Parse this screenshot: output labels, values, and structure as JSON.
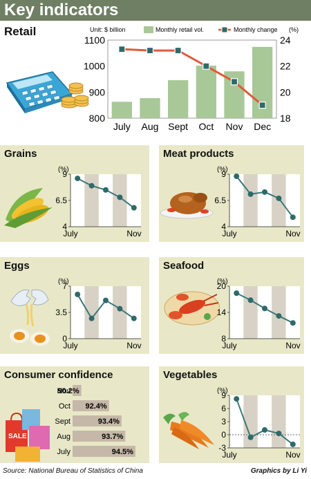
{
  "header": {
    "title": "Key indicators"
  },
  "retail": {
    "title": "Retail",
    "unit_label": "Unit: $ billion",
    "legend_bar": "Monthly retail vol.",
    "legend_line": "Monthly change",
    "right_unit": "(%)",
    "chart_data": {
      "type": "bar+line",
      "categories": [
        "July",
        "Aug",
        "Sept",
        "Oct",
        "Nov",
        "Dec"
      ],
      "series": [
        {
          "name": "Monthly retail vol.",
          "type": "bar",
          "axis": "left",
          "values": [
            863,
            877,
            946,
            1002,
            980,
            1074
          ]
        },
        {
          "name": "Monthly change",
          "type": "line",
          "axis": "right",
          "values": [
            23.3,
            23.2,
            23.2,
            22.0,
            20.8,
            19.0
          ]
        }
      ],
      "ylim_left": [
        800,
        1100
      ],
      "yticks_left": [
        "800",
        "900",
        "1000",
        "1100"
      ],
      "ylim_right": [
        18,
        24
      ],
      "yticks_right": [
        "18",
        "20",
        "22",
        "24"
      ],
      "colors": {
        "bar": "#a8c898",
        "line": "#e05a3a",
        "marker": "#2e6a6a"
      }
    }
  },
  "panels": [
    {
      "id": "grains",
      "title": "Grains",
      "unit": "(%)",
      "chart_data": {
        "type": "line",
        "x_first": "July",
        "x_last": "Nov",
        "values": [
          8.6,
          7.9,
          7.5,
          6.8,
          5.8
        ],
        "ylim": [
          4,
          9
        ],
        "yticks": [
          "4",
          "6.5",
          "9"
        ]
      }
    },
    {
      "id": "meat",
      "title": "Meat products",
      "unit": "(%)",
      "chart_data": {
        "type": "line",
        "x_first": "July",
        "x_last": "Nov",
        "values": [
          8.8,
          7.1,
          7.3,
          6.7,
          4.9
        ],
        "ylim": [
          4,
          9
        ],
        "yticks": [
          "4",
          "6.5",
          "9"
        ]
      }
    },
    {
      "id": "eggs",
      "title": "Eggs",
      "unit": "(%)",
      "chart_data": {
        "type": "line",
        "x_first": "July",
        "x_last": "Nov",
        "values": [
          5.9,
          2.7,
          5.1,
          4.0,
          2.7
        ],
        "ylim": [
          0,
          7
        ],
        "yticks": [
          "0",
          "3.5",
          "7"
        ]
      }
    },
    {
      "id": "seafood",
      "title": "Seafood",
      "unit": "(%)",
      "chart_data": {
        "type": "line",
        "x_first": "July",
        "x_last": "Nov",
        "values": [
          18.4,
          16.8,
          14.9,
          13.2,
          11.6
        ],
        "ylim": [
          8,
          20
        ],
        "yticks": [
          "8",
          "14",
          "20"
        ]
      }
    },
    {
      "id": "vegetables",
      "title": "Vegetables",
      "unit": "(%)",
      "chart_data": {
        "type": "line",
        "x_first": "July",
        "x_last": "Nov",
        "values": [
          8.2,
          -0.6,
          1.1,
          0.3,
          -2.2
        ],
        "ylim": [
          -3,
          9
        ],
        "yticks": [
          "-3",
          "0",
          "3",
          "6",
          "9"
        ]
      }
    }
  ],
  "consumer": {
    "title": "Consumer confidence",
    "chart_data": {
      "type": "bar",
      "orientation": "horizontal",
      "categories": [
        "Nov",
        "Oct",
        "Sept",
        "Aug",
        "July"
      ],
      "values": [
        90.2,
        92.4,
        93.4,
        93.7,
        94.5
      ],
      "labels": [
        "90.2%",
        "92.4%",
        "93.4%",
        "93.7%",
        "94.5%"
      ]
    }
  },
  "footer": {
    "source": "Source: National Bureau of Statistics of China",
    "credit": "Graphics by Li Yi"
  },
  "colors": {
    "header_bg": "#6f7f64",
    "panel_bg": "#e8e8c8",
    "band": "#d8d2c6",
    "line": "#3a7878",
    "marker": "#2e6a6a",
    "consumer_bar": "#c6b8a8"
  }
}
